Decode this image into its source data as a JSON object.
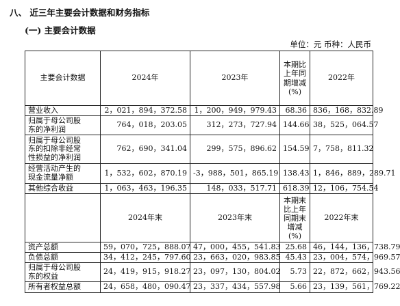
{
  "section_title": "八、 近三年主要会计数据和财务指标",
  "subsection_title": "(一) 主要会计数据",
  "unit_line": "单位：元  币种：人民币",
  "table1": {
    "headers": [
      "主要会计数据",
      "2024年",
      "2023年",
      "本期比上年同期增减(%)",
      "2022年"
    ],
    "pct_header_lines": [
      "本期比",
      "上年同",
      "期增减",
      "(%)"
    ],
    "rows": [
      {
        "label_lines": [
          "营业收入"
        ],
        "v2024": "2，021，894，372.58",
        "v2023": "1，200，949，979.43",
        "pct": "68.36",
        "v2022": "836，168，832.89"
      },
      {
        "label_lines": [
          "归属于母公司股",
          "东的净利润"
        ],
        "v2024": "764，018，203.05",
        "v2023": "312，273，727.94",
        "pct": "144.66",
        "v2022": "38，525，064.57"
      },
      {
        "label_lines": [
          "归属于母公司股",
          "东的扣除非经常",
          "性损益的净利润"
        ],
        "v2024": "762，690，341.04",
        "v2023": "299，575，896.62",
        "pct": "154.59",
        "v2022": "7，758，811.32"
      },
      {
        "label_lines": [
          "经营活动产生的",
          "现金流量净额"
        ],
        "v2024": "1，532，602，870.19",
        "v2023": "-3，988，501，865.19",
        "pct": "138.43",
        "v2022": "1，846，889，289.71"
      },
      {
        "label_lines": [
          "其他综合收益"
        ],
        "v2024": "1，063，463，196.35",
        "v2023": "148，033，517.71",
        "pct": "618.39",
        "v2022": "12，106，754.54"
      }
    ]
  },
  "table2": {
    "headers": [
      "",
      "2024年末",
      "2023年末",
      "本期末比上年同期末增减(%)",
      "2022年末"
    ],
    "pct_header_lines": [
      "本期末",
      "比上年",
      "同期末",
      "增减",
      "(%)"
    ],
    "rows": [
      {
        "label_lines": [
          "资产总额"
        ],
        "v2024": "59，070，725，888.07",
        "v2023": "47，000，455，541.83",
        "pct": "25.68",
        "v2022": "46，144，136，738.79"
      },
      {
        "label_lines": [
          "负债总额"
        ],
        "v2024": "34，412，245，797.60",
        "v2023": "23，663，020，983.85",
        "pct": "45.43",
        "v2022": "23，004，574，969.57"
      },
      {
        "label_lines": [
          "归属于母公司股",
          "东的权益"
        ],
        "v2024": "24，419，915，918.27",
        "v2023": "23，097，130，804.02",
        "pct": "5.73",
        "v2022": "22，872，662，943.56"
      },
      {
        "label_lines": [
          "所有者权益总额"
        ],
        "v2024": "24，658，480，090.47",
        "v2023": "23，337，434，557.98",
        "pct": "5.66",
        "v2022": "23，139，561，769.22"
      }
    ]
  }
}
